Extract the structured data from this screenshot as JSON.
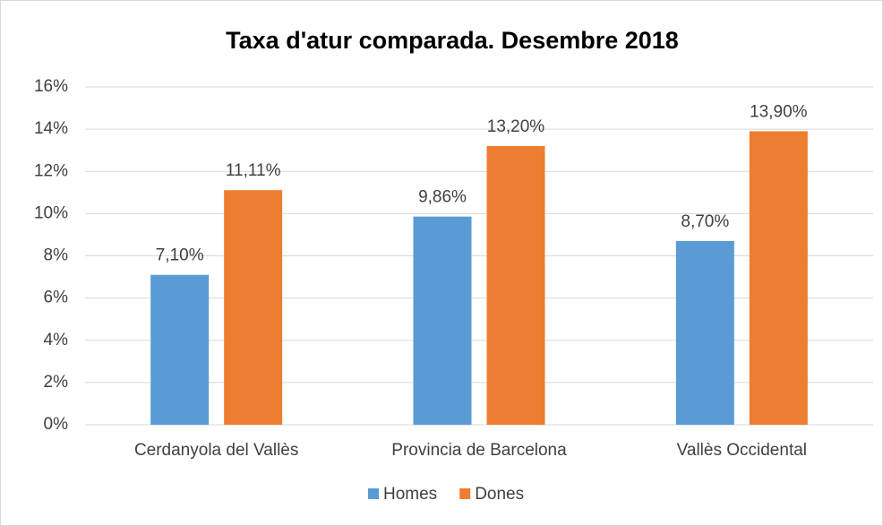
{
  "chart_data": {
    "type": "bar",
    "title": "Taxa d'atur comparada. Desembre 2018",
    "categories": [
      "Cerdanyola del Vallès",
      "Provincia de Barcelona",
      "Vallès Occidental"
    ],
    "series": [
      {
        "name": "Homes",
        "color": "#5b9bd5",
        "values": [
          7.1,
          9.86,
          8.7
        ],
        "value_labels": [
          "7,10%",
          "9,86%",
          "8,70%"
        ]
      },
      {
        "name": "Dones",
        "color": "#ed7d31",
        "values": [
          11.11,
          13.2,
          13.9
        ],
        "value_labels": [
          "11,11%",
          "13,20%",
          "13,90%"
        ]
      }
    ],
    "ylim": [
      0,
      16
    ],
    "yticks": [
      {
        "value": 0,
        "label": "0%"
      },
      {
        "value": 2,
        "label": "2%"
      },
      {
        "value": 4,
        "label": "4%"
      },
      {
        "value": 6,
        "label": "6%"
      },
      {
        "value": 8,
        "label": "8%"
      },
      {
        "value": 10,
        "label": "10%"
      },
      {
        "value": 12,
        "label": "12%"
      },
      {
        "value": 14,
        "label": "14%"
      },
      {
        "value": 16,
        "label": "16%"
      }
    ],
    "grid": true,
    "legend": "bottom"
  }
}
